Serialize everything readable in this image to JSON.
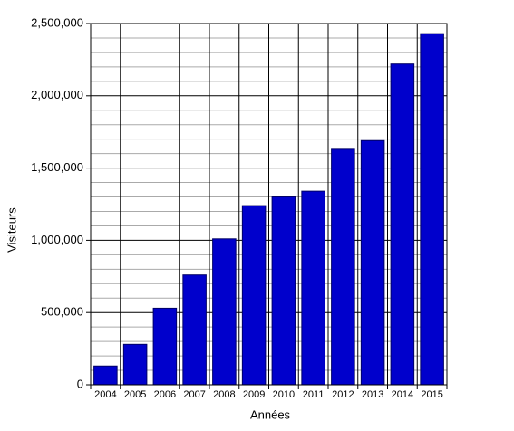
{
  "chart_data": {
    "type": "bar",
    "x_label": "Années",
    "y_label": "Visiteurs",
    "categories": [
      "2004",
      "2005",
      "2006",
      "2007",
      "2008",
      "2009",
      "2010",
      "2011",
      "2012",
      "2013",
      "2014",
      "2015"
    ],
    "values": [
      130000,
      280000,
      530000,
      760000,
      1010000,
      1240000,
      1300000,
      1340000,
      1630000,
      1690000,
      2220000,
      2430000
    ],
    "color": "#0000cc",
    "ylim": [
      0,
      2500000
    ],
    "yticks": [
      0,
      {
        "value": 500000,
        "label": "500,000"
      },
      {
        "value": 1000000,
        "label": "1,000,000"
      },
      {
        "value": 1500000,
        "label": "1,500,000"
      },
      {
        "value": 2000000,
        "label": "2,000,000"
      },
      {
        "value": 2500000,
        "label": "2,500,000"
      }
    ],
    "yminorticks": [
      100000,
      200000,
      300000,
      400000,
      600000,
      700000,
      800000,
      900000,
      1100000,
      1200000,
      1300000,
      1400000,
      1600000,
      1700000,
      1800000,
      1900000,
      2100000,
      2200000,
      2300000,
      2400000
    ],
    "grid": true
  }
}
